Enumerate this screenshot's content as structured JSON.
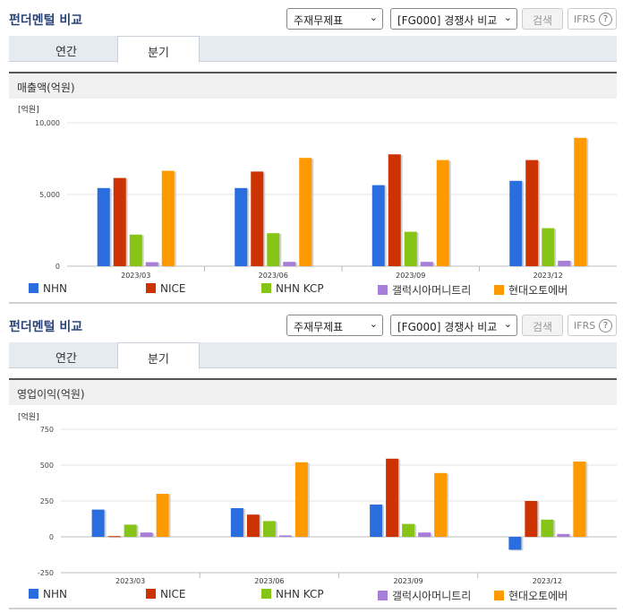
{
  "colors": {
    "NHN": "#2a6ddf",
    "NICE": "#cc3300",
    "NHN KCP": "#86c418",
    "갤럭시아머니트리": "#a77fd8",
    "현대오토에버": "#ff9900"
  },
  "panels": [
    {
      "header": {
        "title": "펀더멘털 비교",
        "statement_select": "주재무제표",
        "peer_select": "[FG000] 경쟁사 비교",
        "search_label": "검색",
        "ifrs_label": "IFRS",
        "help_glyph": "?"
      },
      "tabs": [
        {
          "label": "연간",
          "active": false
        },
        {
          "label": "분기",
          "active": true
        }
      ],
      "section_title": "매출액(억원)",
      "unit_label": "[억원]"
    },
    {
      "header": {
        "title": "펀더멘털 비교",
        "statement_select": "주재무제표",
        "peer_select": "[FG000] 경쟁사 비교",
        "search_label": "검색",
        "ifrs_label": "IFRS",
        "help_glyph": "?"
      },
      "tabs": [
        {
          "label": "연간",
          "active": false
        },
        {
          "label": "분기",
          "active": true
        }
      ],
      "section_title": "영업이익(억원)",
      "unit_label": "[억원]"
    }
  ],
  "chart_data": [
    {
      "type": "bar",
      "ylabel": "[억원]",
      "categories": [
        "2023/03",
        "2023/06",
        "2023/09",
        "2023/12"
      ],
      "ylim": [
        0,
        10000
      ],
      "yticks": [
        0,
        5000,
        10000
      ],
      "ytick_labels": [
        "0",
        "5,000",
        "10,000"
      ],
      "legend": "bottom",
      "series": [
        {
          "name": "NHN",
          "values": [
            5450,
            5450,
            5650,
            5950
          ]
        },
        {
          "name": "NICE",
          "values": [
            6150,
            6600,
            7800,
            7400
          ]
        },
        {
          "name": "NHN KCP",
          "values": [
            2200,
            2300,
            2400,
            2650
          ]
        },
        {
          "name": "갤럭시아머니트리",
          "values": [
            280,
            300,
            300,
            380
          ]
        },
        {
          "name": "현대오토에버",
          "values": [
            6650,
            7550,
            7400,
            8950
          ]
        }
      ]
    },
    {
      "type": "bar",
      "ylabel": "[억원]",
      "categories": [
        "2023/03",
        "2023/06",
        "2023/09",
        "2023/12"
      ],
      "ylim": [
        -250,
        750
      ],
      "yticks": [
        -250,
        0,
        250,
        500,
        750
      ],
      "ytick_labels": [
        "-250",
        "0",
        "250",
        "500",
        "750"
      ],
      "legend": "bottom",
      "series": [
        {
          "name": "NHN",
          "values": [
            190,
            200,
            225,
            -90
          ]
        },
        {
          "name": "NICE",
          "values": [
            5,
            155,
            545,
            250
          ]
        },
        {
          "name": "NHN KCP",
          "values": [
            85,
            110,
            90,
            120
          ]
        },
        {
          "name": "갤럭시아머니트리",
          "values": [
            30,
            10,
            30,
            20
          ]
        },
        {
          "name": "현대오토에버",
          "values": [
            300,
            520,
            445,
            525
          ]
        }
      ]
    }
  ]
}
